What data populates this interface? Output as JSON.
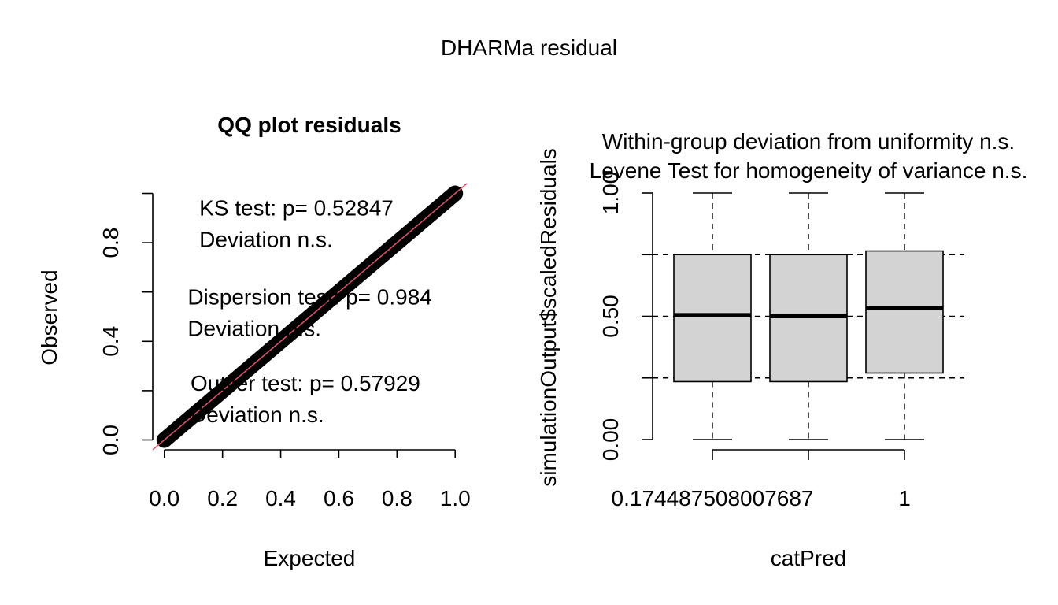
{
  "page": {
    "title": "DHARMa residual"
  },
  "colors": {
    "qq_points": "#000000",
    "reference_line": "#DF536B",
    "box_fill": "#D3D3D3",
    "box_stroke": "#000000",
    "ref_lines": "#000000"
  },
  "chart_data": [
    {
      "type": "scatter",
      "title": "QQ plot residuals",
      "xlabel": "Expected",
      "ylabel": "Observed",
      "xlim": [
        -0.04,
        1.04
      ],
      "ylim": [
        -0.04,
        1.04
      ],
      "xticks": [
        0.0,
        0.2,
        0.4,
        0.6,
        0.8,
        1.0
      ],
      "xtick_labels": [
        "0.0",
        "0.2",
        "0.4",
        "0.6",
        "0.8",
        "1.0"
      ],
      "yticks": [
        0.0,
        0.2,
        0.4,
        0.6,
        0.8,
        1.0
      ],
      "ytick_labels": [
        "0.0",
        "",
        "0.4",
        "",
        "0.8",
        ""
      ],
      "grid": false,
      "series": [
        {
          "x": [
            0.0,
            0.1,
            0.2,
            0.3,
            0.4,
            0.5,
            0.6,
            0.7,
            0.8,
            0.9,
            1.0
          ],
          "y": [
            0.0,
            0.1,
            0.2,
            0.3,
            0.4,
            0.5,
            0.6,
            0.7,
            0.8,
            0.9,
            1.0
          ]
        }
      ],
      "reference_line": {
        "slope": 1,
        "intercept": 0
      },
      "annotations": [
        {
          "lines": [
            "KS test: p= 0.52847",
            "Deviation  n.s."
          ],
          "x": 0.12,
          "y": 0.91
        },
        {
          "lines": [
            "Dispersion test: p= 0.984",
            "Deviation  n.s."
          ],
          "x": 0.08,
          "y": 0.55
        },
        {
          "lines": [
            "Outlier test: p= 0.57929",
            "Deviation  n.s."
          ],
          "x": 0.09,
          "y": 0.2
        }
      ]
    },
    {
      "type": "box",
      "title_lines": [
        "Within-group deviation from uniformity n.s.",
        "Levene Test for homogeneity of variance n.s."
      ],
      "xlabel": "catPred",
      "ylabel": "simulationOutput$scaledResiduals",
      "ylim": [
        0,
        1
      ],
      "yticks": [
        0.0,
        0.25,
        0.5,
        0.75,
        1.0
      ],
      "ytick_labels": [
        "0.00",
        "",
        "0.50",
        "",
        "1.00"
      ],
      "categories": [
        "0.174487508007687",
        "",
        "1"
      ],
      "xtick_labels_shown": [
        "0.174487508007687",
        "1"
      ],
      "boxes": [
        {
          "min": 0.0,
          "q1": 0.235,
          "median": 0.505,
          "q3": 0.75,
          "max": 1.0
        },
        {
          "min": 0.0,
          "q1": 0.235,
          "median": 0.5,
          "q3": 0.75,
          "max": 1.0
        },
        {
          "min": 0.0,
          "q1": 0.27,
          "median": 0.535,
          "q3": 0.765,
          "max": 1.0
        }
      ],
      "reference_lines": [
        0.25,
        0.5,
        0.75
      ]
    }
  ]
}
